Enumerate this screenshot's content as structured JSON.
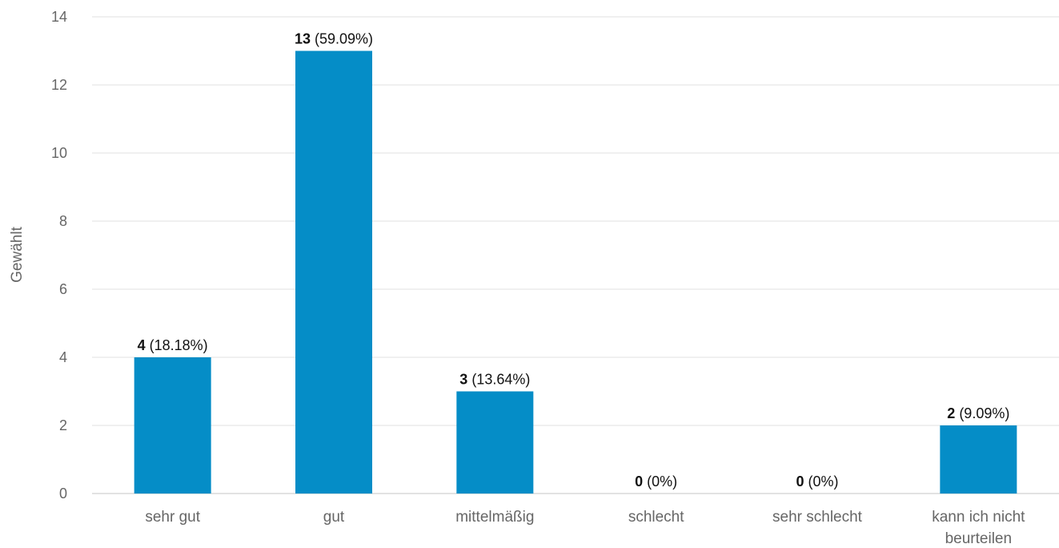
{
  "chart_data": {
    "type": "bar",
    "categories": [
      [
        "sehr gut"
      ],
      [
        "gut"
      ],
      [
        "mittelmäßig"
      ],
      [
        "schlecht"
      ],
      [
        "sehr schlecht"
      ],
      [
        "kann ich nicht",
        "beurteilen"
      ]
    ],
    "values": [
      4,
      13,
      3,
      0,
      0,
      2
    ],
    "percentages": [
      "(18.18%)",
      "(59.09%)",
      "(13.64%)",
      "(0%)",
      "(0%)",
      "(9.09%)"
    ],
    "ylabel": "Gewählt",
    "xlabel": "",
    "title": "",
    "ylim": [
      0,
      14
    ],
    "yticks": [
      0,
      2,
      4,
      6,
      8,
      10,
      12,
      14
    ],
    "grid": true,
    "legend": "none",
    "bar_color": "#058dc7"
  }
}
